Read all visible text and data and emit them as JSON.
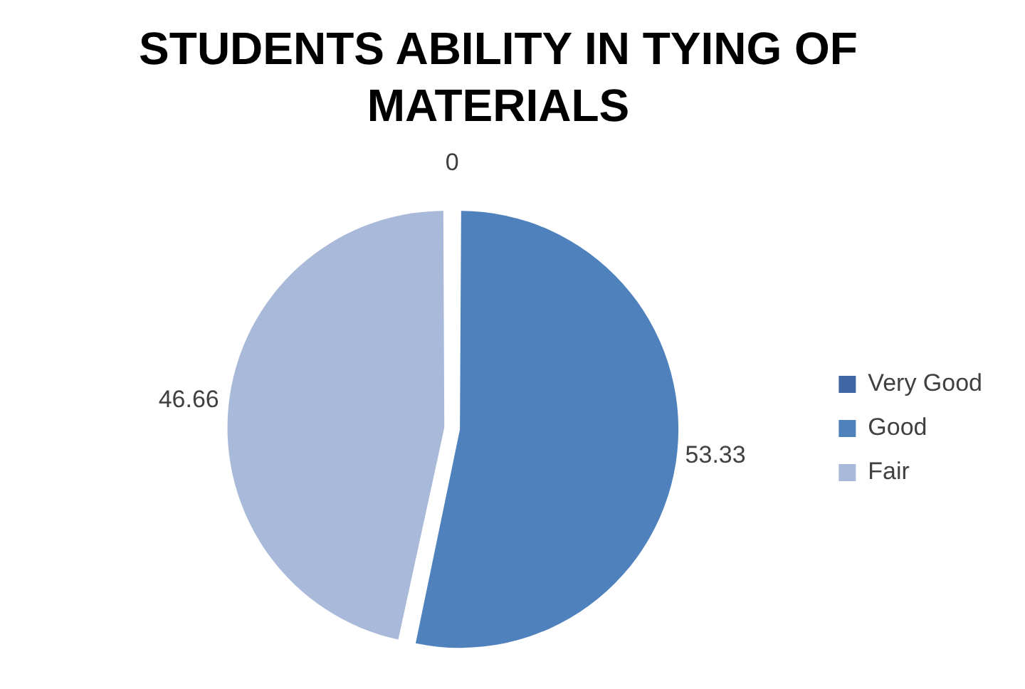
{
  "chart_data": {
    "type": "pie",
    "title": "STUDENTS ABILITY IN TYING OF MATERIALS",
    "categories": [
      "Very Good",
      "Good",
      "Fair"
    ],
    "values": [
      0,
      53.33,
      46.66
    ],
    "colors": [
      "#3f67a3",
      "#4f81bd",
      "#a9b9d9"
    ],
    "value_labels": [
      "0",
      "53.33",
      "46.66"
    ],
    "legend": "right"
  }
}
